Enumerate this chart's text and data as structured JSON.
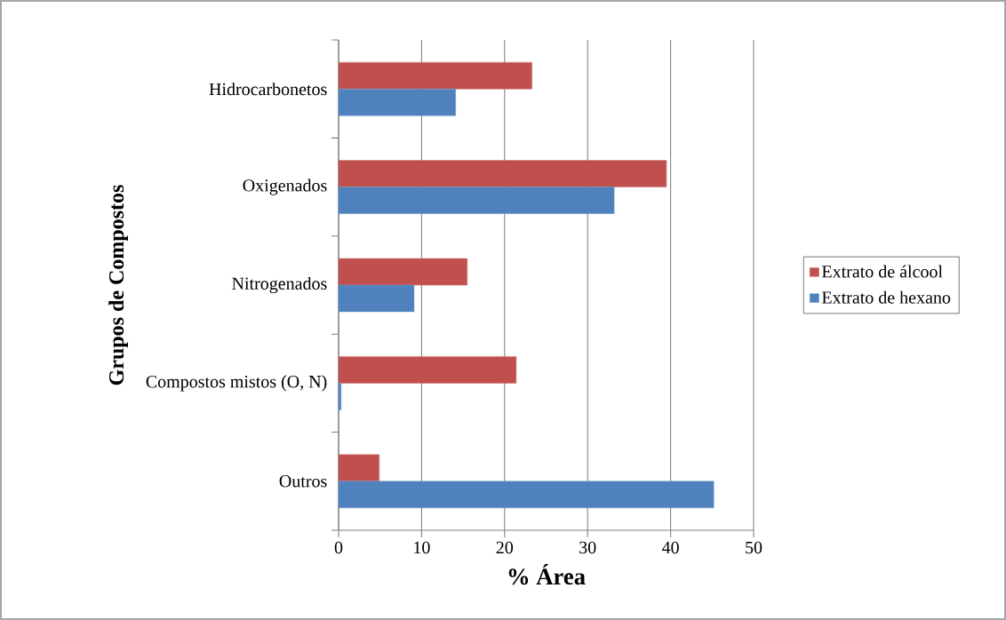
{
  "chart_data": {
    "type": "bar",
    "orientation": "horizontal",
    "xlabel": "% Área",
    "ylabel": "Grupos de Compostos",
    "categories": [
      "Hidrocarbonetos",
      "Oxigenados",
      "Nitrogenados",
      "Compostos mistos (O, N)",
      "Outros"
    ],
    "series": [
      {
        "name": "Extrato de álcool",
        "color": "#c0504d",
        "values": [
          23.3,
          39.5,
          15.5,
          21.4,
          4.9
        ]
      },
      {
        "name": "Extrato de hexano",
        "color": "#4f81bd",
        "values": [
          14.1,
          33.2,
          9.1,
          0.3,
          45.2
        ]
      }
    ],
    "xlim": [
      0,
      50
    ],
    "xticks": [
      0,
      10,
      20,
      30,
      40,
      50
    ],
    "grid": "x",
    "legend": "right"
  }
}
